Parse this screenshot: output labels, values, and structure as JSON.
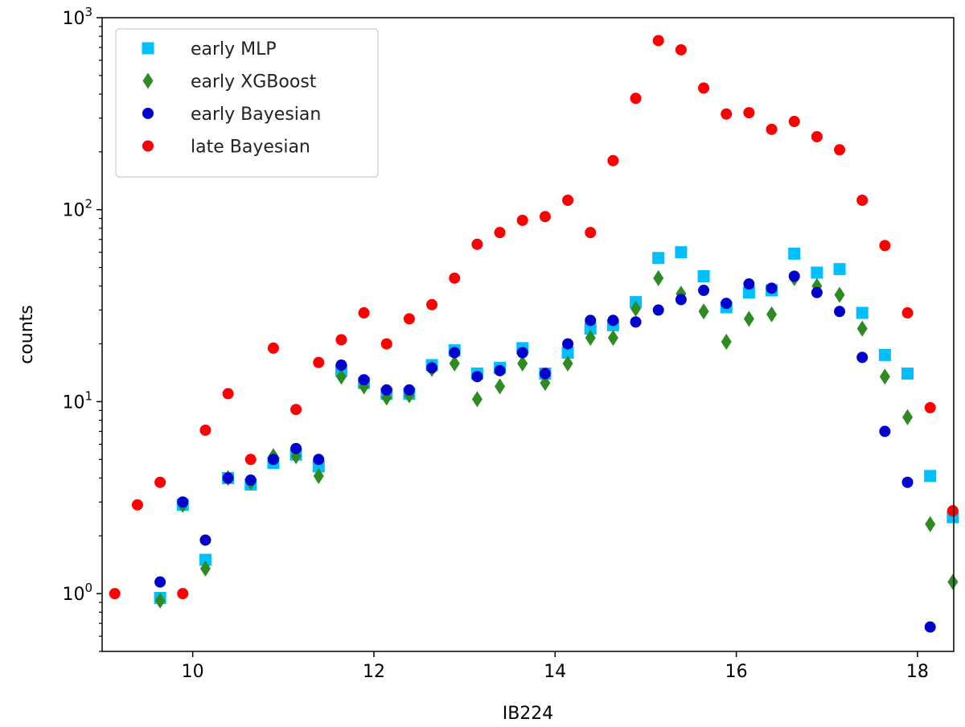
{
  "chart_data": {
    "type": "scatter",
    "title": "",
    "xlabel": "IB224",
    "ylabel": "counts",
    "xlim": [
      9.0,
      18.4
    ],
    "ylim": [
      0.5,
      1000
    ],
    "yscale": "log",
    "grid": false,
    "legend_position": "top-left",
    "x_ticks": [
      10,
      12,
      14,
      16,
      18
    ],
    "x_tick_labels": [
      "10",
      "12",
      "14",
      "16",
      "18"
    ],
    "y_ticks": [
      1,
      10,
      100,
      1000
    ],
    "y_tick_labels": [
      {
        "base": "10",
        "exp": "0"
      },
      {
        "base": "10",
        "exp": "1"
      },
      {
        "base": "10",
        "exp": "2"
      },
      {
        "base": "10",
        "exp": "3"
      }
    ],
    "series": [
      {
        "name": "early MLP",
        "marker": "square",
        "color": "#00bfff",
        "points": [
          [
            9.64,
            0.95
          ],
          [
            9.89,
            2.9
          ],
          [
            10.14,
            1.5
          ],
          [
            10.39,
            4.0
          ],
          [
            10.64,
            3.7
          ],
          [
            10.89,
            4.8
          ],
          [
            11.14,
            5.3
          ],
          [
            11.39,
            4.6
          ],
          [
            11.64,
            14.5
          ],
          [
            11.89,
            12.5
          ],
          [
            12.14,
            11.0
          ],
          [
            12.39,
            11.0
          ],
          [
            12.64,
            15.5
          ],
          [
            12.89,
            18.5
          ],
          [
            13.14,
            14.0
          ],
          [
            13.39,
            15.0
          ],
          [
            13.64,
            19.0
          ],
          [
            13.89,
            14.0
          ],
          [
            14.14,
            18.0
          ],
          [
            14.39,
            24.0
          ],
          [
            14.64,
            25.0
          ],
          [
            14.89,
            33.0
          ],
          [
            15.14,
            56.0
          ],
          [
            15.39,
            60.0
          ],
          [
            15.64,
            45.0
          ],
          [
            15.89,
            31.0
          ],
          [
            16.14,
            37.0
          ],
          [
            16.39,
            38.0
          ],
          [
            16.64,
            59.0
          ],
          [
            16.89,
            47.0
          ],
          [
            17.14,
            49.0
          ],
          [
            17.39,
            29.0
          ],
          [
            17.64,
            17.5
          ],
          [
            17.89,
            14.0
          ],
          [
            18.14,
            4.1
          ],
          [
            18.39,
            2.5
          ]
        ]
      },
      {
        "name": "early XGBoost",
        "marker": "diamond",
        "color": "#2e8b22",
        "points": [
          [
            9.64,
            0.92
          ],
          [
            9.89,
            2.9
          ],
          [
            10.14,
            1.35
          ],
          [
            10.39,
            4.0
          ],
          [
            10.64,
            3.8
          ],
          [
            10.89,
            5.2
          ],
          [
            11.14,
            5.2
          ],
          [
            11.39,
            4.1
          ],
          [
            11.64,
            13.5
          ],
          [
            11.89,
            12.0
          ],
          [
            12.14,
            10.5
          ],
          [
            12.39,
            10.8
          ],
          [
            12.64,
            14.8
          ],
          [
            12.89,
            15.8
          ],
          [
            13.14,
            10.3
          ],
          [
            13.39,
            12.0
          ],
          [
            13.64,
            15.8
          ],
          [
            13.89,
            12.5
          ],
          [
            14.14,
            15.8
          ],
          [
            14.39,
            21.5
          ],
          [
            14.64,
            21.5
          ],
          [
            14.89,
            30.5
          ],
          [
            15.14,
            44.0
          ],
          [
            15.39,
            36.5
          ],
          [
            15.64,
            29.5
          ],
          [
            15.89,
            20.5
          ],
          [
            16.14,
            27.0
          ],
          [
            16.39,
            28.5
          ],
          [
            16.64,
            44.0
          ],
          [
            16.89,
            40.0
          ],
          [
            17.14,
            36.0
          ],
          [
            17.39,
            24.0
          ],
          [
            17.64,
            13.5
          ],
          [
            17.89,
            8.3
          ],
          [
            18.14,
            2.3
          ],
          [
            18.39,
            1.15
          ]
        ]
      },
      {
        "name": "early Bayesian",
        "marker": "circle",
        "color": "#0000cd",
        "points": [
          [
            9.64,
            1.15
          ],
          [
            9.89,
            3.0
          ],
          [
            10.14,
            1.9
          ],
          [
            10.39,
            4.0
          ],
          [
            10.64,
            3.9
          ],
          [
            10.89,
            5.0
          ],
          [
            11.14,
            5.7
          ],
          [
            11.39,
            5.0
          ],
          [
            11.64,
            15.5
          ],
          [
            11.89,
            13.0
          ],
          [
            12.14,
            11.5
          ],
          [
            12.39,
            11.5
          ],
          [
            12.64,
            15.0
          ],
          [
            12.89,
            18.0
          ],
          [
            13.14,
            13.5
          ],
          [
            13.39,
            14.5
          ],
          [
            13.64,
            18.0
          ],
          [
            13.89,
            14.0
          ],
          [
            14.14,
            20.0
          ],
          [
            14.39,
            26.5
          ],
          [
            14.64,
            26.5
          ],
          [
            14.89,
            26.0
          ],
          [
            15.14,
            30.0
          ],
          [
            15.39,
            34.0
          ],
          [
            15.64,
            38.0
          ],
          [
            15.89,
            32.5
          ],
          [
            16.14,
            41.0
          ],
          [
            16.39,
            39.0
          ],
          [
            16.64,
            45.0
          ],
          [
            16.89,
            37.0
          ],
          [
            17.14,
            29.5
          ],
          [
            17.39,
            17.0
          ],
          [
            17.64,
            7.0
          ],
          [
            17.89,
            3.8
          ],
          [
            18.14,
            0.67
          ]
        ]
      },
      {
        "name": "late Bayesian",
        "marker": "circle",
        "color": "#ff0000",
        "points": [
          [
            9.14,
            1.0
          ],
          [
            9.39,
            2.9
          ],
          [
            9.64,
            3.8
          ],
          [
            9.89,
            1.0
          ],
          [
            10.14,
            7.1
          ],
          [
            10.39,
            11.0
          ],
          [
            10.64,
            5.0
          ],
          [
            10.89,
            19.0
          ],
          [
            11.14,
            9.1
          ],
          [
            11.39,
            16.0
          ],
          [
            11.64,
            21.0
          ],
          [
            11.89,
            29.0
          ],
          [
            12.14,
            20.0
          ],
          [
            12.39,
            27.0
          ],
          [
            12.64,
            32.0
          ],
          [
            12.89,
            44.0
          ],
          [
            13.14,
            66.0
          ],
          [
            13.39,
            76.0
          ],
          [
            13.64,
            88.0
          ],
          [
            13.89,
            92.0
          ],
          [
            14.14,
            112.0
          ],
          [
            14.39,
            76.0
          ],
          [
            14.64,
            180.0
          ],
          [
            14.89,
            380.0
          ],
          [
            15.14,
            760.0
          ],
          [
            15.39,
            680.0
          ],
          [
            15.64,
            430.0
          ],
          [
            15.89,
            315.0
          ],
          [
            16.14,
            320.0
          ],
          [
            16.39,
            262.0
          ],
          [
            16.64,
            288.0
          ],
          [
            16.89,
            240.0
          ],
          [
            17.14,
            205.0
          ],
          [
            17.39,
            112.0
          ],
          [
            17.64,
            65.0
          ],
          [
            17.89,
            29.0
          ],
          [
            18.14,
            9.3
          ],
          [
            18.39,
            2.7
          ]
        ]
      }
    ]
  }
}
